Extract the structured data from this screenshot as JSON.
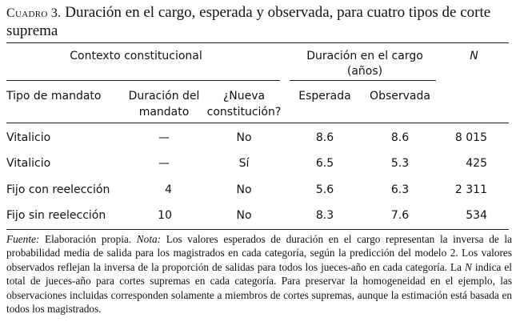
{
  "caption": {
    "label": "Cuadro 3.",
    "title": "Duración en el cargo, esperada y observada, para cuatro tipos de corte suprema"
  },
  "header": {
    "group_context": "Contexto constitucional",
    "group_duration_line1": "Duración en el cargo",
    "group_duration_line2": "(años)",
    "n": "N",
    "col_tipo": "Tipo de mandato",
    "col_duracion_line1": "Duración del",
    "col_duracion_line2": "mandato",
    "col_nueva_line1": "¿Nueva",
    "col_nueva_line2": "constitución?",
    "col_esperada": "Esperada",
    "col_observada": "Observada"
  },
  "rows": [
    {
      "tipo": "Vitalicio",
      "duracion": "—",
      "nueva": "No",
      "esperada": "8.6",
      "observada": "8.6",
      "n": "8 015"
    },
    {
      "tipo": "Vitalicio",
      "duracion": "—",
      "nueva": "Sí",
      "esperada": "6.5",
      "observada": "5.3",
      "n": "425"
    },
    {
      "tipo": "Fijo con reelección",
      "duracion": "4",
      "nueva": "No",
      "esperada": "5.6",
      "observada": "6.3",
      "n": "2 311"
    },
    {
      "tipo": "Fijo sin reelección",
      "duracion": "10",
      "nueva": "No",
      "esperada": "8.3",
      "observada": "7.6",
      "n": "534"
    }
  ],
  "note": {
    "fuente_label": "Fuente:",
    "fuente_text": " Elaboración propia. ",
    "nota_label": "Nota:",
    "nota_text": " Los valores esperados de duración en el cargo representan la inversa de la probabilidad media de salida para los magistrados en cada categoría, según la predicción del modelo 2. Los valores observados reflejan la inversa de la proporción de salidas para todos los jueces-año en cada categoría. La ",
    "n_label": "N",
    "end_text": " indica el total de jueces-año para cortes supremas en cada categoría. Para preservar la homogeneidad en el ejemplo, las observaciones incluidas corresponden solamente a miembros de cortes supremas, aunque la estimación está basada en todos los magistrados."
  }
}
